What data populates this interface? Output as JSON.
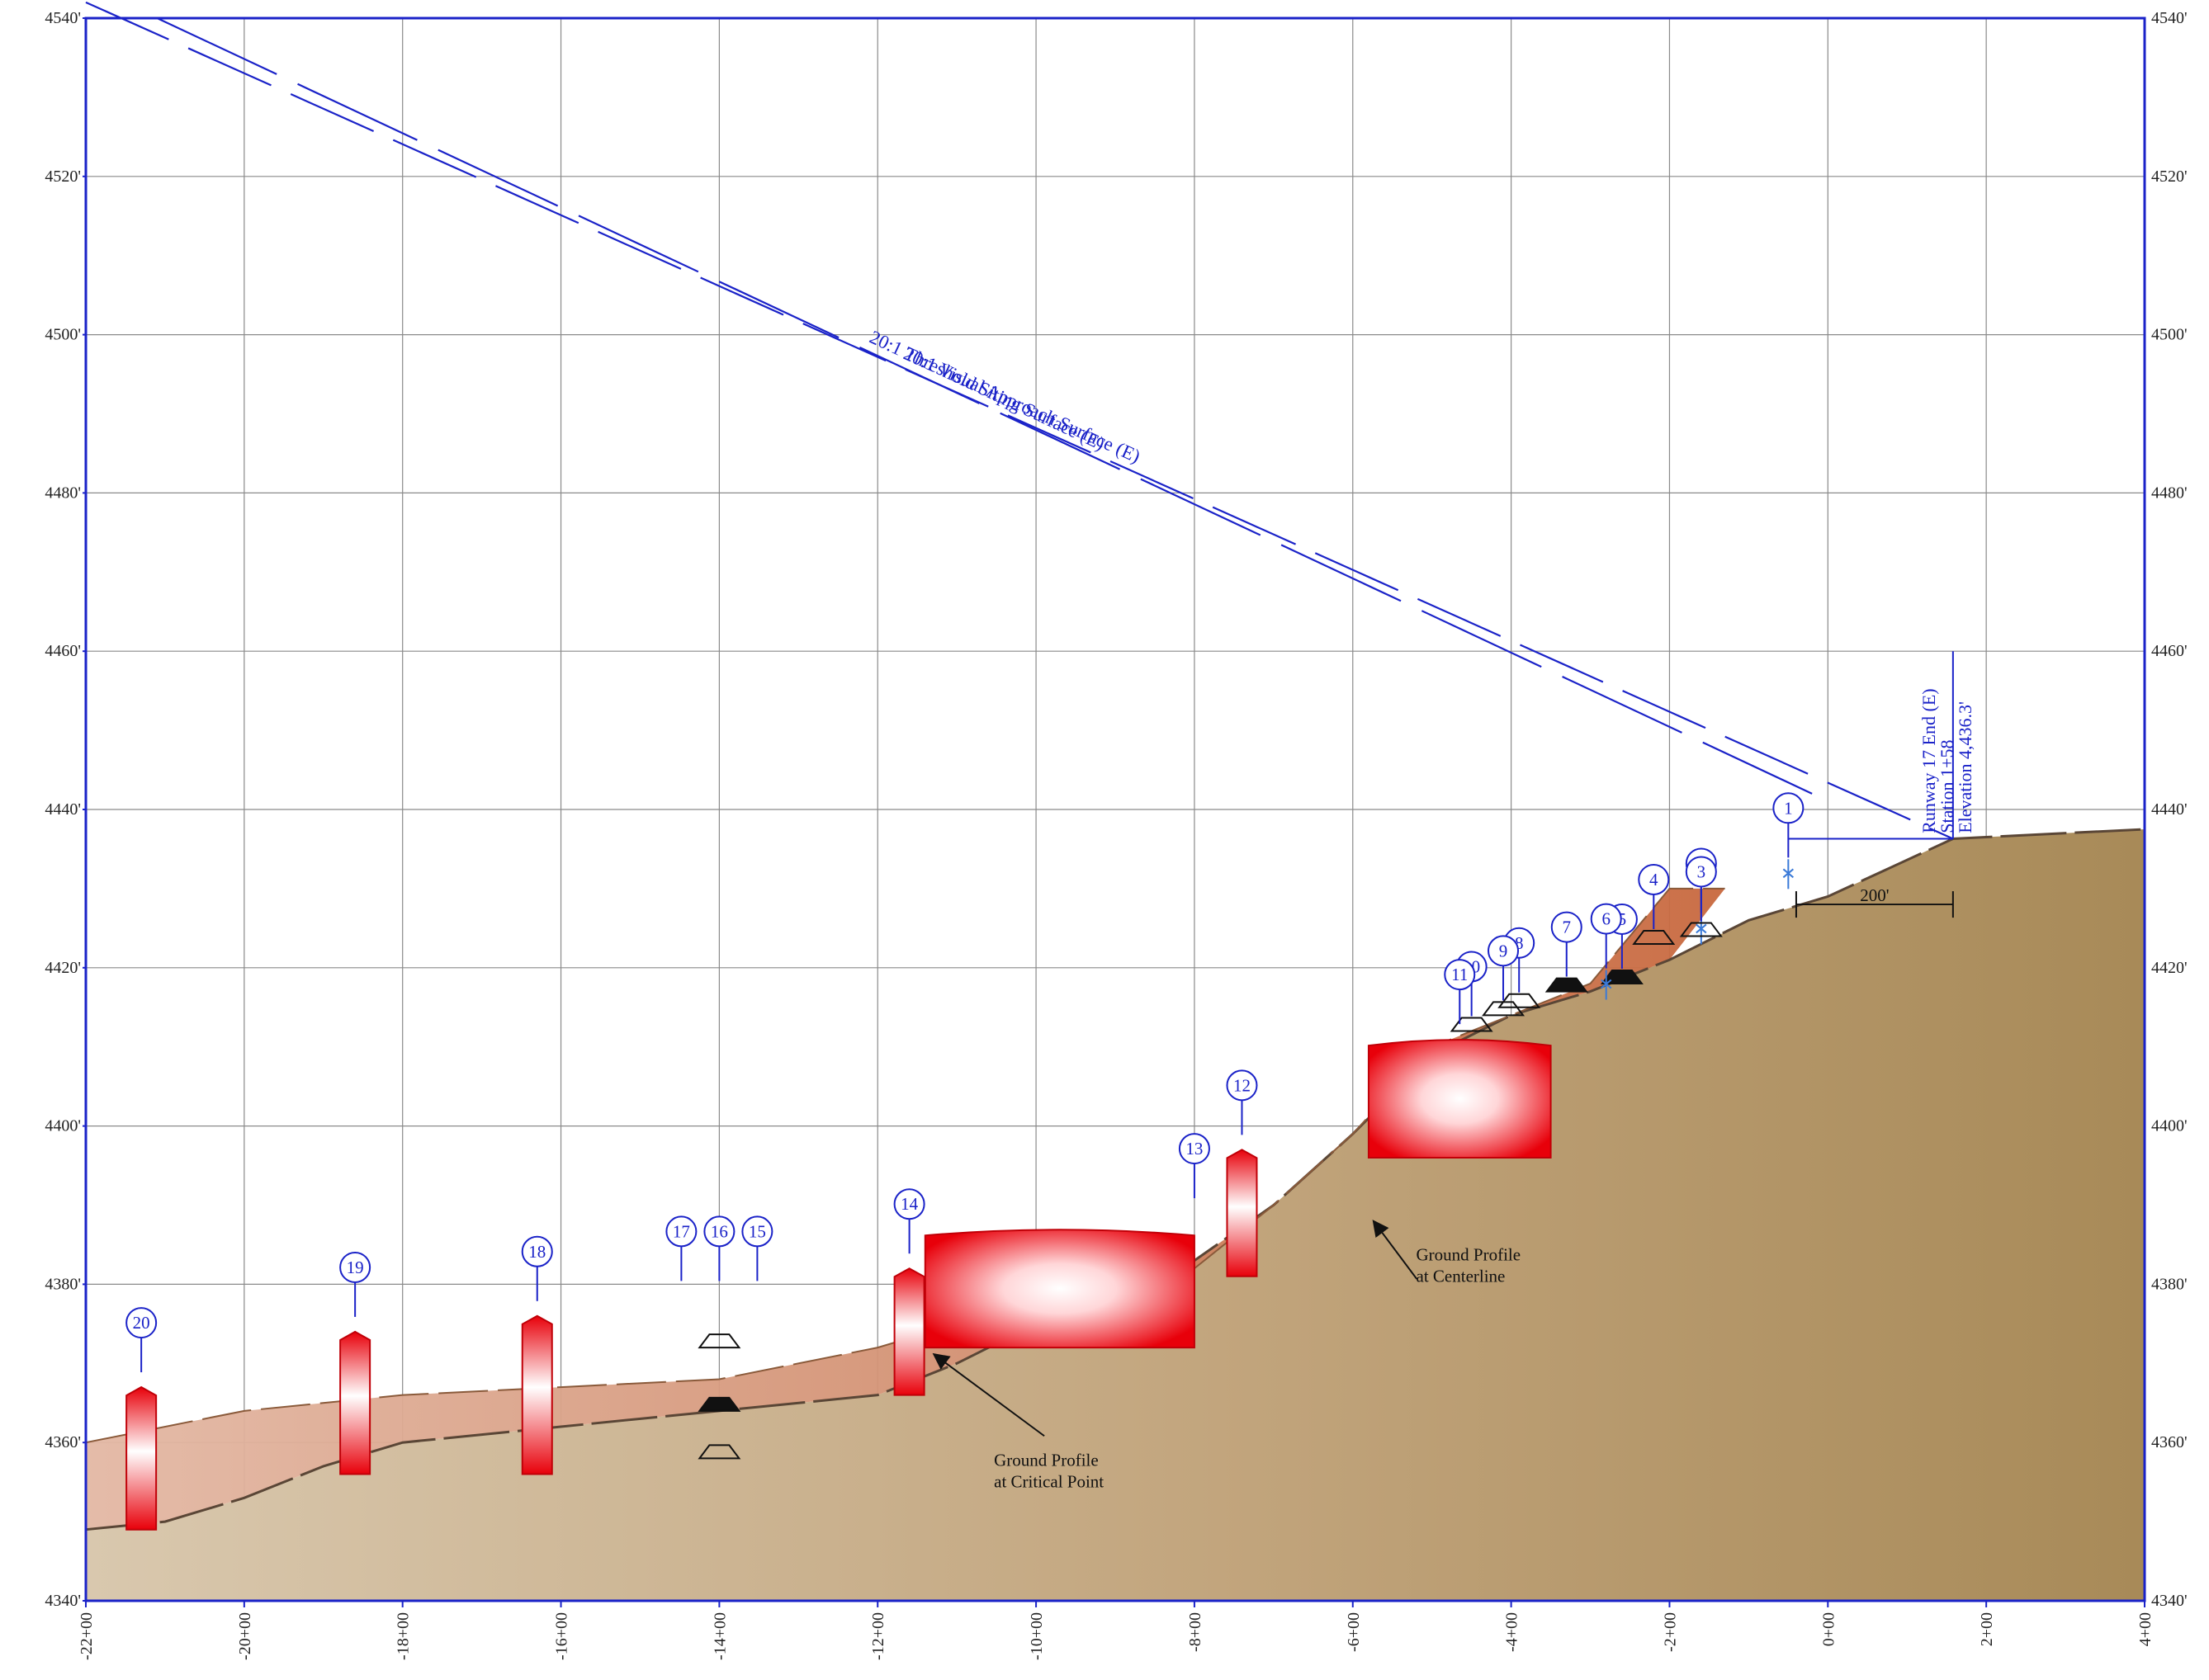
{
  "chart_data": {
    "type": "profile",
    "x_axis": {
      "ticks": [
        "-22+00",
        "-20+00",
        "-18+00",
        "-16+00",
        "-14+00",
        "-12+00",
        "-10+00",
        "-8+00",
        "-6+00",
        "-4+00",
        "-2+00",
        "0+00",
        "2+00",
        "4+00"
      ],
      "range": [
        -2200,
        400
      ]
    },
    "y_axis": {
      "ticks": [
        "4340'",
        "4360'",
        "4380'",
        "4400'",
        "4420'",
        "4440'",
        "4460'",
        "4480'",
        "4500'",
        "4520'",
        "4540'"
      ],
      "range": [
        4340,
        4540
      ]
    },
    "grid": true,
    "colors": {
      "frame": "#1a22c8",
      "terrain_left": "#d8c7ad",
      "terrain_right": "#a88a58",
      "critical_band": "#d08c6c",
      "obstruction": "#e8000a"
    },
    "surfaces": [
      {
        "label": "20:1 Threshold Siting Surface (E)",
        "line": "solid-dashed",
        "points": [
          [
            -2110,
            4540
          ],
          [
            -20,
            4442
          ]
        ]
      },
      {
        "label": "20:1 Visual Approach Surface (E)",
        "line": "solid-dashed",
        "points": [
          [
            -2200,
            4542
          ],
          [
            158,
            4436.3
          ]
        ]
      }
    ],
    "ground_profile_centerline": [
      [
        -2200,
        4349
      ],
      [
        -2100,
        4350
      ],
      [
        -2000,
        4353
      ],
      [
        -1900,
        4357
      ],
      [
        -1800,
        4360
      ],
      [
        -1700,
        4361
      ],
      [
        -1600,
        4362
      ],
      [
        -1400,
        4364
      ],
      [
        -1200,
        4366
      ],
      [
        -1100,
        4370
      ],
      [
        -1000,
        4375
      ],
      [
        -900,
        4379
      ],
      [
        -800,
        4383
      ],
      [
        -700,
        4390
      ],
      [
        -600,
        4399
      ],
      [
        -500,
        4409
      ],
      [
        -400,
        4414
      ],
      [
        -300,
        4417
      ],
      [
        -200,
        4421
      ],
      [
        -100,
        4426
      ],
      [
        0,
        4429
      ],
      [
        158,
        4436.3
      ],
      [
        400,
        4437.5
      ]
    ],
    "ground_profile_critical": [
      [
        -2200,
        4360
      ],
      [
        -2000,
        4364
      ],
      [
        -1800,
        4366
      ],
      [
        -1600,
        4367
      ],
      [
        -1400,
        4368
      ],
      [
        -1200,
        4372
      ],
      [
        -1100,
        4375
      ],
      [
        -1000,
        4380
      ],
      [
        -800,
        4382
      ],
      [
        -700,
        4390
      ],
      [
        -600,
        4399
      ],
      [
        -500,
        4410
      ],
      [
        -400,
        4414
      ],
      [
        -300,
        4418
      ],
      [
        -200,
        4430
      ],
      [
        -130,
        4430
      ]
    ],
    "annotations": {
      "critical": [
        "Ground Profile",
        "at Critical Point"
      ],
      "centerline": [
        "Ground Profile",
        "at Centerline"
      ],
      "runway_end": [
        "Runway 17 End (E)",
        "Station 1+58",
        "Elevation 4,436.3'"
      ],
      "dimension": "200'"
    },
    "objects": [
      {
        "id": "1",
        "kind": "tree-mark",
        "station": -50,
        "elev": 4431
      },
      {
        "id": "2",
        "kind": "tree-mark",
        "station": -160,
        "elev": 4424
      },
      {
        "id": "3",
        "kind": "road-open",
        "station": -160,
        "elev": 4424
      },
      {
        "id": "4",
        "kind": "road-open",
        "station": -220,
        "elev": 4423
      },
      {
        "id": "5",
        "kind": "road-filled",
        "station": -260,
        "elev": 4418
      },
      {
        "id": "6",
        "kind": "tree-mark",
        "station": -280,
        "elev": 4417
      },
      {
        "id": "7",
        "kind": "road-filled",
        "station": -330,
        "elev": 4417
      },
      {
        "id": "8",
        "kind": "road-open",
        "station": -390,
        "elev": 4415
      },
      {
        "id": "9",
        "kind": "road-open",
        "station": -410,
        "elev": 4414
      },
      {
        "id": "10",
        "kind": "road-open",
        "station": -450,
        "elev": 4412
      },
      {
        "id": "11",
        "kind": "block",
        "station_range": [
          -580,
          -350
        ],
        "elev_range": [
          4396,
          4411
        ]
      },
      {
        "id": "12",
        "kind": "column",
        "station": -740,
        "elev_range": [
          4381,
          4397
        ]
      },
      {
        "id": "13",
        "kind": "leader",
        "station": -800,
        "elev": 4389
      },
      {
        "id": "14",
        "kind": "column",
        "station": -1160,
        "elev_range": [
          4366,
          4382
        ]
      },
      {
        "id": "14",
        "kind": "block",
        "station_range": [
          -1140,
          -800
        ],
        "elev_range": [
          4372,
          4387
        ]
      },
      {
        "id": "15",
        "kind": "road-open",
        "station": -1400,
        "elev": 4372
      },
      {
        "id": "16",
        "kind": "road-filled",
        "station": -1400,
        "elev": 4364
      },
      {
        "id": "17",
        "kind": "road-open",
        "station": -1400,
        "elev": 4358
      },
      {
        "id": "18",
        "kind": "column",
        "station": -1630,
        "elev_range": [
          4356,
          4376
        ]
      },
      {
        "id": "19",
        "kind": "column",
        "station": -1860,
        "elev_range": [
          4356,
          4374
        ]
      },
      {
        "id": "20",
        "kind": "column",
        "station": -2130,
        "elev_range": [
          4349,
          4367
        ]
      }
    ]
  }
}
